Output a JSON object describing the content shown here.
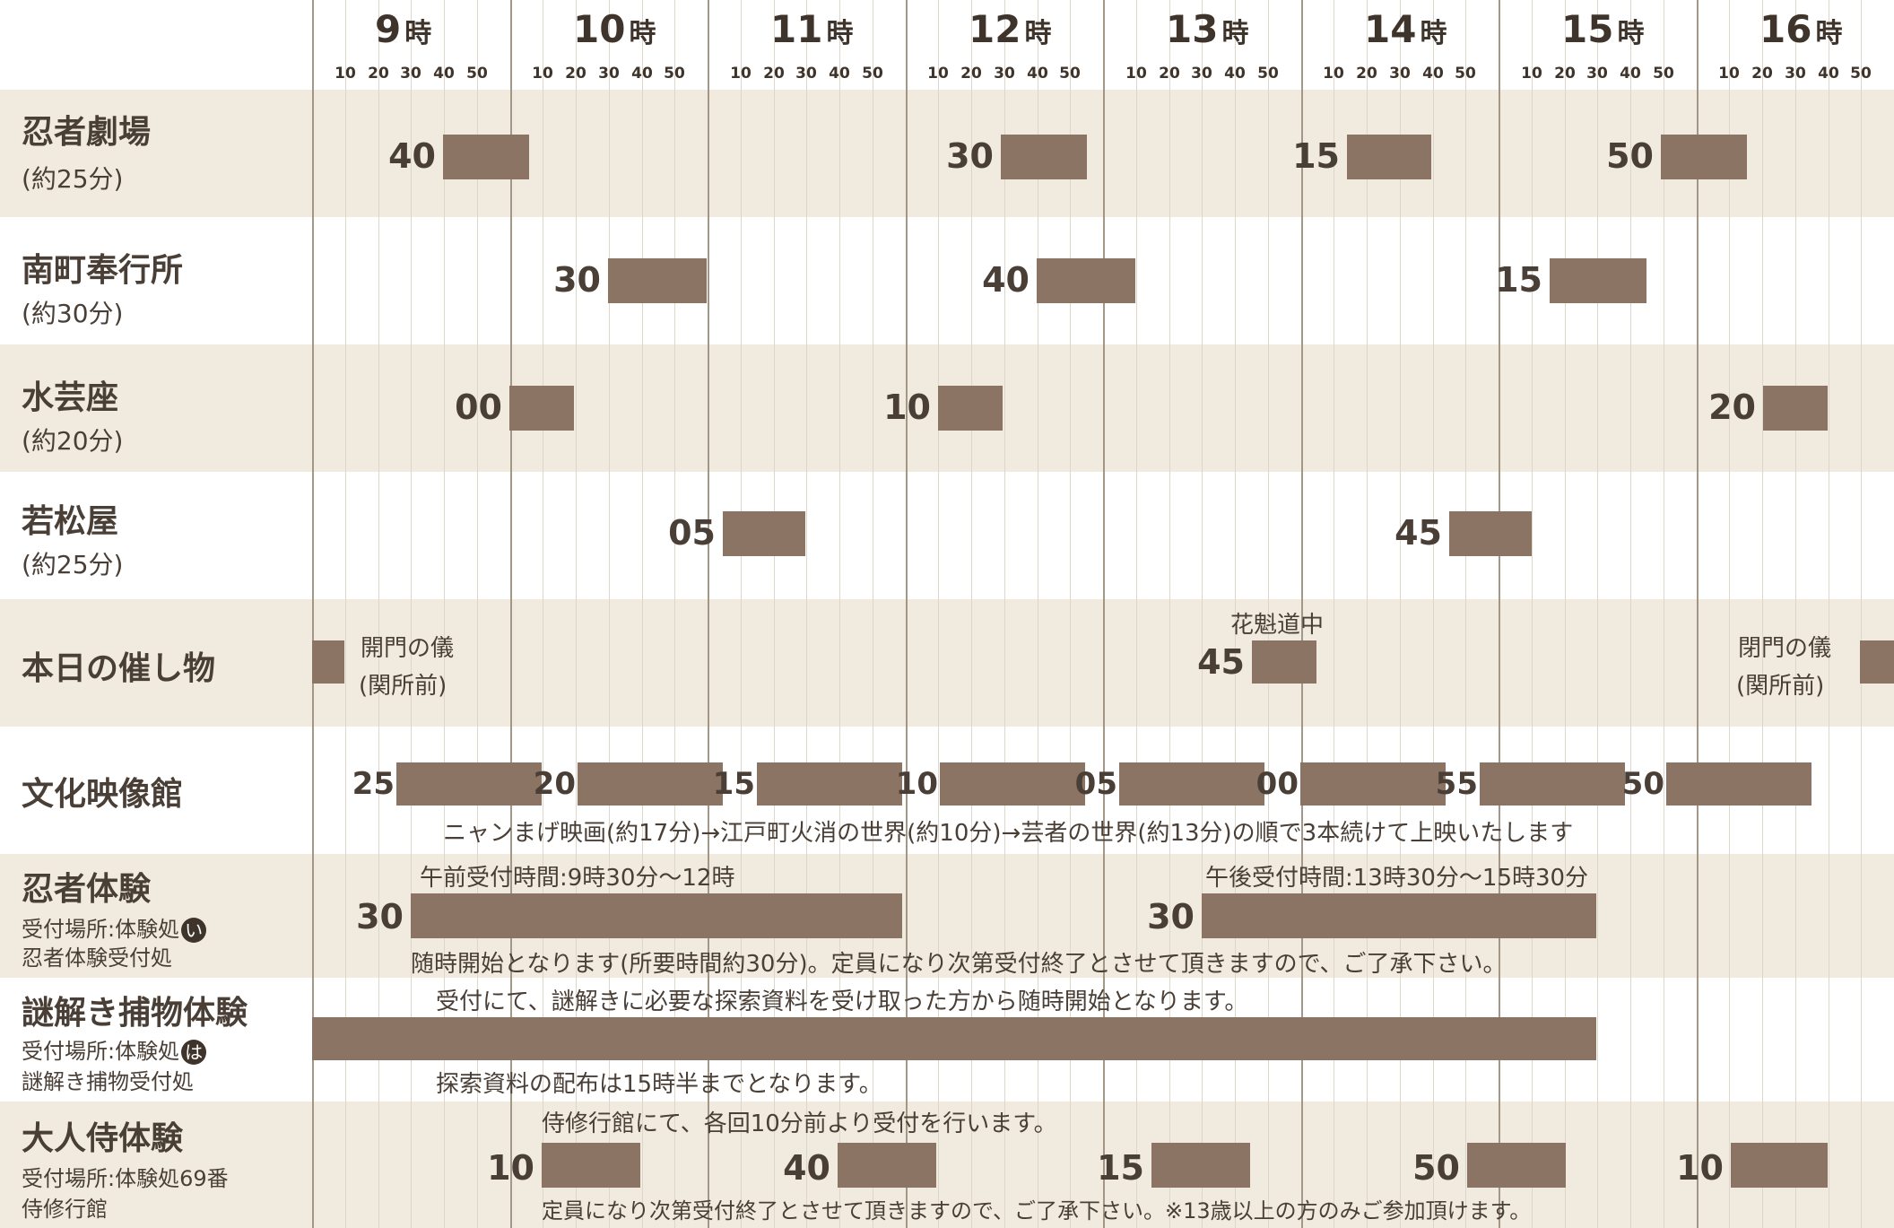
{
  "hours": [
    {
      "label": "9",
      "unit": "時"
    },
    {
      "label": "10",
      "unit": "時"
    },
    {
      "label": "11",
      "unit": "時"
    },
    {
      "label": "12",
      "unit": "時"
    },
    {
      "label": "13",
      "unit": "時"
    },
    {
      "label": "14",
      "unit": "時"
    },
    {
      "label": "15",
      "unit": "時"
    },
    {
      "label": "16",
      "unit": "時"
    }
  ],
  "minute_ticks": [
    "10",
    "20",
    "30",
    "40",
    "50"
  ],
  "rows": {
    "ninja_theater": {
      "title": "忍者劇場",
      "sub": "(約25分)",
      "starts": [
        "40",
        "30",
        "15",
        "50"
      ]
    },
    "minami_bugyosho": {
      "title": "南町奉行所",
      "sub": "(約30分)",
      "starts": [
        "30",
        "40",
        "15"
      ]
    },
    "suigeiza": {
      "title": "水芸座",
      "sub": "(約20分)",
      "starts": [
        "00",
        "10",
        "20"
      ]
    },
    "wakamatsuya": {
      "title": "若松屋",
      "sub": "(約25分)",
      "starts": [
        "05",
        "45"
      ]
    },
    "events": {
      "title": "本日の催し物",
      "opening_name": "開門の儀",
      "opening_place": "(関所前)",
      "oiran_name": "花魁道中",
      "oiran_start": "45",
      "closing_name": "閉門の儀",
      "closing_place": "(関所前)"
    },
    "bunka_eizokan": {
      "title": "文化映像館",
      "starts": [
        "25",
        "20",
        "15",
        "10",
        "05",
        "00",
        "55",
        "50"
      ],
      "note": "ニャンまげ映画(約17分)→江戸町火消の世界(約10分)→芸者の世界(約13分)の順で3本続けて上映いたします"
    },
    "ninja_taiken": {
      "title": "忍者体験",
      "place_label": "受付場所:体験処",
      "place_badge": "い",
      "place_detail": "忍者体験受付処",
      "am_note": "午前受付時間:9時30分〜12時",
      "pm_note": "午後受付時間:13時30分〜15時30分",
      "am_start": "30",
      "pm_start": "30",
      "note": "随時開始となります(所要時間約30分)。定員になり次第受付終了とさせて頂きますので、ご了承下さい。"
    },
    "nazotoki": {
      "title": "謎解き捕物体験",
      "place_label": "受付場所:体験処",
      "place_badge": "は",
      "place_detail": "謎解き捕物受付処",
      "note_top": "受付にて、謎解きに必要な探索資料を受け取った方から随時開始となります。",
      "note_bottom": "探索資料の配布は15時半までとなります。"
    },
    "otona_samurai": {
      "title": "大人侍体験",
      "place_label": "受付場所:体験処69番",
      "place_detail": "侍修行館",
      "note_top": "侍修行館にて、各回10分前より受付を行います。",
      "starts": [
        "10",
        "40",
        "15",
        "50",
        "10"
      ],
      "note_bottom": "定員になり次第受付終了とさせて頂きますので、ご了承下さい。※13歳以上の方のみご参加頂けます。"
    }
  },
  "colors": {
    "bar": "#8c7464",
    "shade": "#f1ebdf",
    "hour_line": "#a39888",
    "text": "#4a3f36"
  }
}
